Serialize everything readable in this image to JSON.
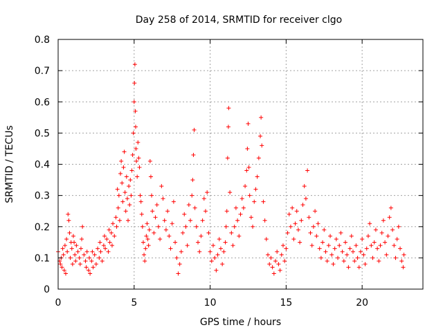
{
  "chart_data": {
    "type": "scatter",
    "title": "Day 258 of 2014, SRMTID for receiver clgo",
    "xlabel": "GPS time / hours",
    "ylabel": "SRMTID / TECUs",
    "xlim": [
      0,
      24
    ],
    "ylim": [
      0,
      0.8
    ],
    "xticks": [
      0,
      5,
      10,
      15,
      20
    ],
    "xtick_labels": [
      "0",
      "5",
      "10",
      "15",
      "20"
    ],
    "yticks": [
      0,
      0.1,
      0.2,
      0.3,
      0.4,
      0.5,
      0.6,
      0.7,
      0.8
    ],
    "ytick_labels": [
      "0",
      "0.1",
      "0.2",
      "0.3",
      "0.4",
      "0.5",
      "0.6",
      "0.7",
      "0.8"
    ],
    "grid": true,
    "marker": "+",
    "color": "#ff0000",
    "series": [
      {
        "name": "SRMTID",
        "points": [
          [
            0.0,
            0.12
          ],
          [
            0.1,
            0.09
          ],
          [
            0.15,
            0.08
          ],
          [
            0.2,
            0.1
          ],
          [
            0.25,
            0.07
          ],
          [
            0.3,
            0.13
          ],
          [
            0.35,
            0.11
          ],
          [
            0.4,
            0.06
          ],
          [
            0.45,
            0.14
          ],
          [
            0.5,
            0.05
          ],
          [
            0.55,
            0.16
          ],
          [
            0.6,
            0.12
          ],
          [
            0.65,
            0.24
          ],
          [
            0.7,
            0.22
          ],
          [
            0.75,
            0.18
          ],
          [
            0.8,
            0.1
          ],
          [
            0.85,
            0.15
          ],
          [
            0.9,
            0.13
          ],
          [
            0.95,
            0.08
          ],
          [
            1.0,
            0.17
          ],
          [
            1.05,
            0.15
          ],
          [
            1.1,
            0.11
          ],
          [
            1.15,
            0.09
          ],
          [
            1.2,
            0.14
          ],
          [
            1.3,
            0.12
          ],
          [
            1.4,
            0.1
          ],
          [
            1.45,
            0.08
          ],
          [
            1.5,
            0.13
          ],
          [
            1.55,
            0.16
          ],
          [
            1.6,
            0.2
          ],
          [
            1.7,
            0.11
          ],
          [
            1.8,
            0.09
          ],
          [
            1.85,
            0.07
          ],
          [
            1.9,
            0.12
          ],
          [
            2.0,
            0.06
          ],
          [
            2.05,
            0.1
          ],
          [
            2.1,
            0.05
          ],
          [
            2.2,
            0.09
          ],
          [
            2.25,
            0.12
          ],
          [
            2.3,
            0.07
          ],
          [
            2.4,
            0.11
          ],
          [
            2.5,
            0.08
          ],
          [
            2.6,
            0.13
          ],
          [
            2.7,
            0.1
          ],
          [
            2.75,
            0.15
          ],
          [
            2.8,
            0.12
          ],
          [
            2.9,
            0.09
          ],
          [
            3.0,
            0.14
          ],
          [
            3.05,
            0.17
          ],
          [
            3.1,
            0.13
          ],
          [
            3.2,
            0.16
          ],
          [
            3.3,
            0.12
          ],
          [
            3.35,
            0.19
          ],
          [
            3.4,
            0.15
          ],
          [
            3.5,
            0.18
          ],
          [
            3.55,
            0.14
          ],
          [
            3.6,
            0.21
          ],
          [
            3.7,
            0.17
          ],
          [
            3.8,
            0.23
          ],
          [
            3.85,
            0.2
          ],
          [
            3.9,
            0.32
          ],
          [
            3.95,
            0.26
          ],
          [
            4.0,
            0.3
          ],
          [
            4.05,
            0.22
          ],
          [
            4.1,
            0.37
          ],
          [
            4.15,
            0.41
          ],
          [
            4.2,
            0.34
          ],
          [
            4.25,
            0.28
          ],
          [
            4.3,
            0.39
          ],
          [
            4.35,
            0.44
          ],
          [
            4.4,
            0.31
          ],
          [
            4.45,
            0.25
          ],
          [
            4.5,
            0.36
          ],
          [
            4.55,
            0.29
          ],
          [
            4.6,
            0.22
          ],
          [
            4.65,
            0.33
          ],
          [
            4.7,
            0.27
          ],
          [
            4.75,
            0.35
          ],
          [
            4.8,
            0.3
          ],
          [
            4.85,
            0.38
          ],
          [
            4.9,
            0.43
          ],
          [
            4.95,
            0.5
          ],
          [
            5.0,
            0.6
          ],
          [
            5.02,
            0.66
          ],
          [
            5.05,
            0.72
          ],
          [
            5.08,
            0.57
          ],
          [
            5.1,
            0.52
          ],
          [
            5.12,
            0.45
          ],
          [
            5.15,
            0.41
          ],
          [
            5.2,
            0.36
          ],
          [
            5.25,
            0.47
          ],
          [
            5.3,
            0.42
          ],
          [
            5.35,
            0.39
          ],
          [
            5.4,
            0.3
          ],
          [
            5.45,
            0.28
          ],
          [
            5.5,
            0.24
          ],
          [
            5.55,
            0.2
          ],
          [
            5.6,
            0.15
          ],
          [
            5.65,
            0.11
          ],
          [
            5.7,
            0.09
          ],
          [
            5.75,
            0.13
          ],
          [
            5.8,
            0.17
          ],
          [
            5.85,
            0.21
          ],
          [
            5.9,
            0.16
          ],
          [
            5.95,
            0.14
          ],
          [
            6.0,
            0.19
          ],
          [
            6.05,
            0.41
          ],
          [
            6.1,
            0.36
          ],
          [
            6.15,
            0.3
          ],
          [
            6.2,
            0.25
          ],
          [
            6.3,
            0.18
          ],
          [
            6.4,
            0.23
          ],
          [
            6.5,
            0.27
          ],
          [
            6.6,
            0.2
          ],
          [
            6.7,
            0.16
          ],
          [
            6.8,
            0.33
          ],
          [
            6.9,
            0.29
          ],
          [
            7.0,
            0.22
          ],
          [
            7.1,
            0.19
          ],
          [
            7.2,
            0.25
          ],
          [
            7.3,
            0.17
          ],
          [
            7.4,
            0.13
          ],
          [
            7.5,
            0.21
          ],
          [
            7.6,
            0.28
          ],
          [
            7.7,
            0.15
          ],
          [
            7.8,
            0.1
          ],
          [
            7.9,
            0.05
          ],
          [
            8.0,
            0.08
          ],
          [
            8.1,
            0.12
          ],
          [
            8.2,
            0.18
          ],
          [
            8.3,
            0.24
          ],
          [
            8.4,
            0.2
          ],
          [
            8.5,
            0.14
          ],
          [
            8.6,
            0.27
          ],
          [
            8.7,
            0.22
          ],
          [
            8.8,
            0.3
          ],
          [
            8.85,
            0.35
          ],
          [
            8.9,
            0.43
          ],
          [
            8.95,
            0.51
          ],
          [
            9.0,
            0.26
          ],
          [
            9.1,
            0.2
          ],
          [
            9.2,
            0.15
          ],
          [
            9.3,
            0.12
          ],
          [
            9.4,
            0.17
          ],
          [
            9.5,
            0.22
          ],
          [
            9.6,
            0.29
          ],
          [
            9.7,
            0.25
          ],
          [
            9.8,
            0.31
          ],
          [
            9.9,
            0.18
          ],
          [
            10.0,
            0.12
          ],
          [
            10.1,
            0.09
          ],
          [
            10.2,
            0.14
          ],
          [
            10.3,
            0.1
          ],
          [
            10.4,
            0.06
          ],
          [
            10.5,
            0.11
          ],
          [
            10.6,
            0.16
          ],
          [
            10.7,
            0.13
          ],
          [
            10.8,
            0.08
          ],
          [
            10.9,
            0.12
          ],
          [
            11.0,
            0.15
          ],
          [
            11.05,
            0.2
          ],
          [
            11.1,
            0.25
          ],
          [
            11.15,
            0.42
          ],
          [
            11.2,
            0.52
          ],
          [
            11.22,
            0.58
          ],
          [
            11.3,
            0.31
          ],
          [
            11.4,
            0.18
          ],
          [
            11.5,
            0.14
          ],
          [
            11.6,
            0.2
          ],
          [
            11.7,
            0.26
          ],
          [
            11.8,
            0.22
          ],
          [
            11.9,
            0.17
          ],
          [
            12.0,
            0.24
          ],
          [
            12.1,
            0.29
          ],
          [
            12.2,
            0.26
          ],
          [
            12.3,
            0.33
          ],
          [
            12.4,
            0.38
          ],
          [
            12.45,
            0.45
          ],
          [
            12.5,
            0.53
          ],
          [
            12.55,
            0.39
          ],
          [
            12.6,
            0.3
          ],
          [
            12.7,
            0.23
          ],
          [
            12.8,
            0.2
          ],
          [
            12.9,
            0.28
          ],
          [
            13.0,
            0.32
          ],
          [
            13.1,
            0.36
          ],
          [
            13.2,
            0.42
          ],
          [
            13.3,
            0.49
          ],
          [
            13.35,
            0.55
          ],
          [
            13.4,
            0.46
          ],
          [
            13.5,
            0.28
          ],
          [
            13.6,
            0.22
          ],
          [
            13.7,
            0.16
          ],
          [
            13.8,
            0.11
          ],
          [
            13.9,
            0.08
          ],
          [
            14.0,
            0.1
          ],
          [
            14.1,
            0.07
          ],
          [
            14.2,
            0.05
          ],
          [
            14.3,
            0.09
          ],
          [
            14.4,
            0.12
          ],
          [
            14.5,
            0.08
          ],
          [
            14.6,
            0.06
          ],
          [
            14.7,
            0.11
          ],
          [
            14.8,
            0.14
          ],
          [
            14.9,
            0.09
          ],
          [
            15.0,
            0.13
          ],
          [
            15.1,
            0.18
          ],
          [
            15.2,
            0.24
          ],
          [
            15.3,
            0.2
          ],
          [
            15.4,
            0.26
          ],
          [
            15.5,
            0.16
          ],
          [
            15.6,
            0.21
          ],
          [
            15.7,
            0.25
          ],
          [
            15.8,
            0.19
          ],
          [
            15.9,
            0.15
          ],
          [
            16.0,
            0.22
          ],
          [
            16.1,
            0.27
          ],
          [
            16.2,
            0.33
          ],
          [
            16.3,
            0.29
          ],
          [
            16.4,
            0.38
          ],
          [
            16.5,
            0.23
          ],
          [
            16.6,
            0.18
          ],
          [
            16.7,
            0.14
          ],
          [
            16.8,
            0.2
          ],
          [
            16.9,
            0.25
          ],
          [
            17.0,
            0.17
          ],
          [
            17.1,
            0.21
          ],
          [
            17.2,
            0.13
          ],
          [
            17.3,
            0.1
          ],
          [
            17.4,
            0.15
          ],
          [
            17.5,
            0.19
          ],
          [
            17.6,
            0.12
          ],
          [
            17.7,
            0.09
          ],
          [
            17.8,
            0.14
          ],
          [
            17.9,
            0.17
          ],
          [
            18.0,
            0.11
          ],
          [
            18.1,
            0.08
          ],
          [
            18.2,
            0.13
          ],
          [
            18.3,
            0.16
          ],
          [
            18.4,
            0.1
          ],
          [
            18.5,
            0.14
          ],
          [
            18.6,
            0.18
          ],
          [
            18.7,
            0.12
          ],
          [
            18.8,
            0.09
          ],
          [
            18.9,
            0.15
          ],
          [
            19.0,
            0.11
          ],
          [
            19.1,
            0.07
          ],
          [
            19.2,
            0.13
          ],
          [
            19.3,
            0.17
          ],
          [
            19.4,
            0.12
          ],
          [
            19.5,
            0.09
          ],
          [
            19.6,
            0.14
          ],
          [
            19.7,
            0.1
          ],
          [
            19.8,
            0.07
          ],
          [
            19.9,
            0.12
          ],
          [
            20.0,
            0.16
          ],
          [
            20.1,
            0.11
          ],
          [
            20.2,
            0.08
          ],
          [
            20.3,
            0.13
          ],
          [
            20.4,
            0.17
          ],
          [
            20.5,
            0.21
          ],
          [
            20.6,
            0.14
          ],
          [
            20.7,
            0.1
          ],
          [
            20.8,
            0.15
          ],
          [
            20.9,
            0.19
          ],
          [
            21.0,
            0.13
          ],
          [
            21.1,
            0.09
          ],
          [
            21.2,
            0.14
          ],
          [
            21.3,
            0.18
          ],
          [
            21.4,
            0.22
          ],
          [
            21.5,
            0.15
          ],
          [
            21.6,
            0.11
          ],
          [
            21.7,
            0.17
          ],
          [
            21.8,
            0.23
          ],
          [
            21.9,
            0.26
          ],
          [
            22.0,
            0.19
          ],
          [
            22.1,
            0.14
          ],
          [
            22.2,
            0.1
          ],
          [
            22.3,
            0.16
          ],
          [
            22.4,
            0.2
          ],
          [
            22.5,
            0.13
          ],
          [
            22.6,
            0.09
          ],
          [
            22.7,
            0.07
          ],
          [
            22.75,
            0.11
          ]
        ]
      }
    ]
  }
}
